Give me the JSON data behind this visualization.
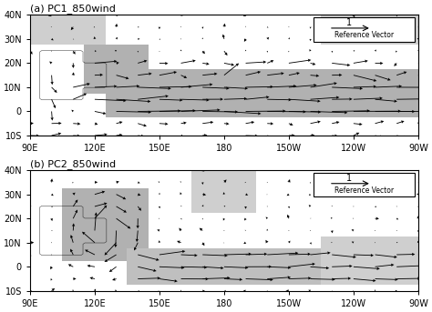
{
  "panel_a_title": "(a) PC1_850wind",
  "panel_b_title": "(b) PC2_850wind",
  "lon_min": 90,
  "lon_max": 270,
  "lat_min": -10,
  "lat_max": 40,
  "xticks": [
    90,
    120,
    150,
    180,
    210,
    240,
    270
  ],
  "xticklabels": [
    "90E",
    "120E",
    "150E",
    "180",
    "150W",
    "120W",
    "90W"
  ],
  "yticks": [
    -10,
    0,
    10,
    20,
    30,
    40
  ],
  "yticklabels": [
    "10S",
    "0",
    "10N",
    "20N",
    "30N",
    "40N"
  ],
  "ref_vector_label": "Reference Vector",
  "ref_vector_value": "1",
  "bg_color": "#ffffff",
  "shade_color": "#c0c0c0",
  "arrow_color": "#000000",
  "figsize": [
    4.74,
    3.43
  ],
  "dpi": 100
}
